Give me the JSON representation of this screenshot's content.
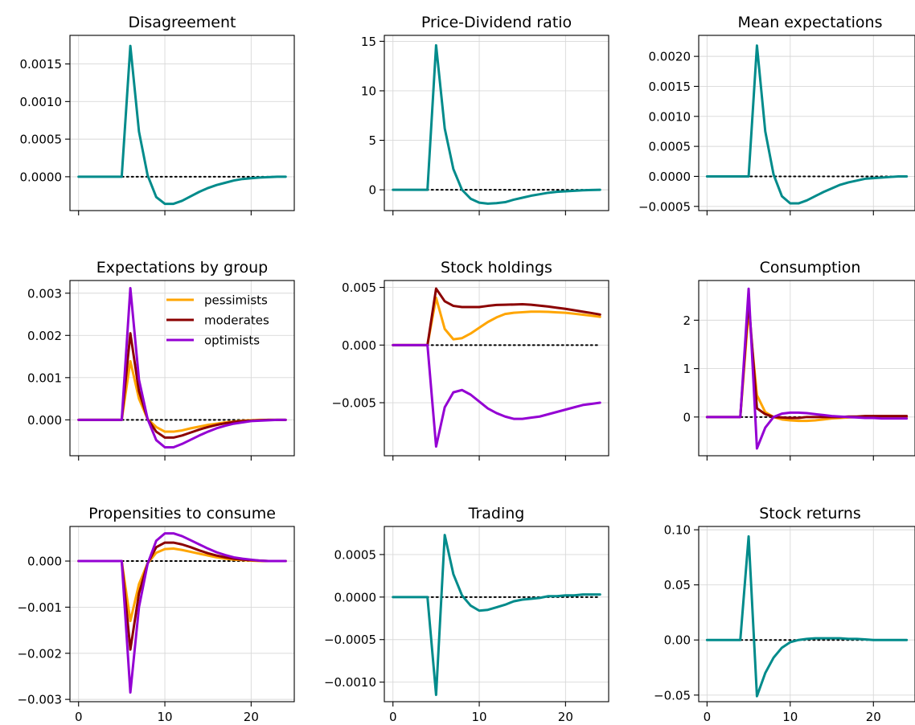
{
  "figure": {
    "line_color_default": "#008B8B",
    "group_colors": {
      "pessimists": "#FFA500",
      "moderates": "#8B0000",
      "optimists": "#9400D3"
    }
  },
  "chart_data": [
    {
      "type": "line",
      "title": "Disagreement",
      "x": [
        0,
        1,
        2,
        3,
        4,
        5,
        6,
        7,
        8,
        9,
        10,
        11,
        12,
        13,
        14,
        15,
        16,
        17,
        18,
        19,
        20,
        21,
        22,
        23,
        24
      ],
      "xlim": [
        -1,
        25
      ],
      "xticks": [
        0,
        10,
        20
      ],
      "show_xtick_labels": false,
      "ylim": [
        -0.00045,
        0.00188
      ],
      "yticks": [
        0.0,
        0.0005,
        0.001,
        0.0015
      ],
      "ytick_labels": [
        "0.0000",
        "0.0005",
        "0.0010",
        "0.0015"
      ],
      "grid": true,
      "zero_line": true,
      "series": [
        {
          "color": "#008B8B",
          "values": [
            0,
            0,
            0,
            0,
            0,
            0,
            0.00174,
            0.0006,
            2e-05,
            -0.00027,
            -0.00036,
            -0.00036,
            -0.00032,
            -0.00026,
            -0.0002,
            -0.00015,
            -0.00011,
            -8e-05,
            -5e-05,
            -3e-05,
            -2e-05,
            -1e-05,
            -5e-06,
            0,
            0
          ]
        }
      ]
    },
    {
      "type": "line",
      "title": "Price-Dividend ratio",
      "x": [
        0,
        1,
        2,
        3,
        4,
        5,
        6,
        7,
        8,
        9,
        10,
        11,
        12,
        13,
        14,
        15,
        16,
        17,
        18,
        19,
        20,
        21,
        22,
        23,
        24
      ],
      "xlim": [
        -1,
        25
      ],
      "xticks": [
        0,
        10,
        20
      ],
      "show_xtick_labels": false,
      "ylim": [
        -2.1,
        15.6
      ],
      "yticks": [
        0,
        5,
        10,
        15
      ],
      "ytick_labels": [
        "0",
        "5",
        "10",
        "15"
      ],
      "grid": true,
      "zero_line": true,
      "series": [
        {
          "color": "#008B8B",
          "values": [
            0,
            0,
            0,
            0,
            0,
            14.6,
            6.2,
            2.1,
            0,
            -0.9,
            -1.3,
            -1.4,
            -1.35,
            -1.25,
            -1.0,
            -0.8,
            -0.6,
            -0.45,
            -0.3,
            -0.2,
            -0.15,
            -0.1,
            -0.05,
            -0.02,
            0
          ]
        }
      ]
    },
    {
      "type": "line",
      "title": "Mean expectations",
      "x": [
        0,
        1,
        2,
        3,
        4,
        5,
        6,
        7,
        8,
        9,
        10,
        11,
        12,
        13,
        14,
        15,
        16,
        17,
        18,
        19,
        20,
        21,
        22,
        23,
        24
      ],
      "xlim": [
        -1,
        25
      ],
      "xticks": [
        0,
        10,
        20
      ],
      "show_xtick_labels": false,
      "ylim": [
        -0.00057,
        0.00235
      ],
      "yticks": [
        -0.0005,
        0.0,
        0.0005,
        0.001,
        0.0015,
        0.002
      ],
      "ytick_labels": [
        "−0.0005",
        "0.0000",
        "0.0005",
        "0.0010",
        "0.0015",
        "0.0020"
      ],
      "grid": true,
      "zero_line": true,
      "series": [
        {
          "color": "#008B8B",
          "values": [
            0,
            0,
            0,
            0,
            0,
            0,
            0.00218,
            0.00075,
            3e-05,
            -0.00033,
            -0.00045,
            -0.00045,
            -0.0004,
            -0.00033,
            -0.00026,
            -0.0002,
            -0.00014,
            -0.0001,
            -7e-05,
            -4e-05,
            -3e-05,
            -2e-05,
            -1e-05,
            0,
            0
          ]
        }
      ]
    },
    {
      "type": "line",
      "title": "Expectations by group",
      "x": [
        0,
        1,
        2,
        3,
        4,
        5,
        6,
        7,
        8,
        9,
        10,
        11,
        12,
        13,
        14,
        15,
        16,
        17,
        18,
        19,
        20,
        21,
        22,
        23,
        24
      ],
      "xlim": [
        -1,
        25
      ],
      "xticks": [
        0,
        10,
        20
      ],
      "show_xtick_labels": false,
      "ylim": [
        -0.00085,
        0.0033
      ],
      "yticks": [
        0.0,
        0.001,
        0.002,
        0.003
      ],
      "ytick_labels": [
        "0.000",
        "0.001",
        "0.002",
        "0.003"
      ],
      "grid": true,
      "zero_line": true,
      "legend": {
        "placement": "top-right",
        "entries": [
          "pessimists",
          "moderates",
          "optimists"
        ]
      },
      "series": [
        {
          "name": "pessimists",
          "color": "#FFA500",
          "values": [
            0,
            0,
            0,
            0,
            0,
            0,
            0.00139,
            0.0005,
            2e-05,
            -0.00017,
            -0.00028,
            -0.00028,
            -0.00025,
            -0.0002,
            -0.00016,
            -0.00012,
            -9e-05,
            -6e-05,
            -4e-05,
            -2e-05,
            -1e-05,
            0,
            0,
            0,
            0
          ]
        },
        {
          "name": "moderates",
          "color": "#8B0000",
          "values": [
            0,
            0,
            0,
            0,
            0,
            0,
            0.00205,
            0.00068,
            2e-05,
            -0.00028,
            -0.00042,
            -0.00042,
            -0.00037,
            -0.0003,
            -0.00023,
            -0.00017,
            -0.00012,
            -8e-05,
            -5e-05,
            -3e-05,
            -2e-05,
            -1e-05,
            0,
            0,
            0
          ]
        },
        {
          "name": "optimists",
          "color": "#9400D3",
          "values": [
            0,
            0,
            0,
            0,
            0,
            0,
            0.00312,
            0.00095,
            2e-05,
            -0.00048,
            -0.00065,
            -0.00065,
            -0.00057,
            -0.00047,
            -0.00037,
            -0.00028,
            -0.0002,
            -0.00014,
            -9e-05,
            -6e-05,
            -3e-05,
            -2e-05,
            -1e-05,
            0,
            0
          ]
        }
      ]
    },
    {
      "type": "line",
      "title": "Stock holdings",
      "x": [
        0,
        1,
        2,
        3,
        4,
        5,
        6,
        7,
        8,
        9,
        10,
        11,
        12,
        13,
        14,
        15,
        16,
        17,
        18,
        19,
        20,
        21,
        22,
        23,
        24
      ],
      "xlim": [
        -1,
        25
      ],
      "xticks": [
        0,
        10,
        20
      ],
      "show_xtick_labels": false,
      "ylim": [
        -0.0096,
        0.0056
      ],
      "yticks": [
        -0.005,
        0.0,
        0.005
      ],
      "ytick_labels": [
        "−0.005",
        "0.000",
        "0.005"
      ],
      "grid": true,
      "zero_line": true,
      "series": [
        {
          "name": "pessimists",
          "color": "#FFA500",
          "values": [
            0,
            0,
            0,
            0,
            0,
            0.0041,
            0.0014,
            0.0005,
            0.0006,
            0.001,
            0.0015,
            0.002,
            0.0024,
            0.0027,
            0.0028,
            0.00285,
            0.0029,
            0.0029,
            0.00288,
            0.00284,
            0.0028,
            0.00272,
            0.00264,
            0.00255,
            0.00245
          ]
        },
        {
          "name": "moderates",
          "color": "#8B0000",
          "values": [
            0,
            0,
            0,
            0,
            0,
            0.0049,
            0.0038,
            0.0034,
            0.0033,
            0.0033,
            0.0033,
            0.0034,
            0.00348,
            0.0035,
            0.00352,
            0.00354,
            0.0035,
            0.00342,
            0.00334,
            0.00324,
            0.00314,
            0.00302,
            0.0029,
            0.00278,
            0.00265
          ]
        },
        {
          "name": "optimists",
          "color": "#9400D3",
          "values": [
            0,
            0,
            0,
            0,
            0,
            -0.0088,
            -0.0054,
            -0.0041,
            -0.0039,
            -0.0043,
            -0.0049,
            -0.0055,
            -0.0059,
            -0.0062,
            -0.0064,
            -0.0064,
            -0.0063,
            -0.0062,
            -0.006,
            -0.0058,
            -0.0056,
            -0.0054,
            -0.0052,
            -0.0051,
            -0.005
          ]
        }
      ]
    },
    {
      "type": "line",
      "title": "Consumption",
      "x": [
        0,
        1,
        2,
        3,
        4,
        5,
        6,
        7,
        8,
        9,
        10,
        11,
        12,
        13,
        14,
        15,
        16,
        17,
        18,
        19,
        20,
        21,
        22,
        23,
        24
      ],
      "xlim": [
        -1,
        25
      ],
      "xticks": [
        0,
        10,
        20
      ],
      "show_xtick_labels": false,
      "ylim": [
        -0.8,
        2.82
      ],
      "yticks": [
        0,
        1,
        2
      ],
      "ytick_labels": [
        "0",
        "1",
        "2"
      ],
      "grid": true,
      "zero_line": true,
      "series": [
        {
          "name": "pessimists",
          "color": "#FFA500",
          "values": [
            0,
            0,
            0,
            0,
            0,
            2.2,
            0.45,
            0.1,
            0,
            -0.05,
            -0.07,
            -0.08,
            -0.08,
            -0.07,
            -0.05,
            -0.03,
            -0.02,
            -0.01,
            0,
            0,
            0,
            0,
            0,
            0,
            0
          ]
        },
        {
          "name": "moderates",
          "color": "#8B0000",
          "values": [
            0,
            0,
            0,
            0,
            0,
            2.4,
            0.18,
            0.06,
            0,
            -0.01,
            -0.02,
            -0.02,
            0,
            0,
            0,
            0,
            0,
            0.01,
            0.01,
            0.02,
            0.02,
            0.02,
            0.02,
            0.02,
            0.02
          ]
        },
        {
          "name": "optimists",
          "color": "#9400D3",
          "values": [
            0,
            0,
            0,
            0,
            0,
            2.65,
            -0.65,
            -0.22,
            0,
            0.07,
            0.09,
            0.09,
            0.08,
            0.06,
            0.04,
            0.02,
            0.01,
            0,
            -0.01,
            -0.02,
            -0.02,
            -0.03,
            -0.03,
            -0.03,
            -0.03
          ]
        }
      ]
    },
    {
      "type": "line",
      "title": "Propensities to consume",
      "x": [
        0,
        1,
        2,
        3,
        4,
        5,
        6,
        7,
        8,
        9,
        10,
        11,
        12,
        13,
        14,
        15,
        16,
        17,
        18,
        19,
        20,
        21,
        22,
        23,
        24
      ],
      "xlim": [
        -1,
        25
      ],
      "xticks": [
        0,
        10,
        20
      ],
      "show_xtick_labels": true,
      "ylim": [
        -0.00305,
        0.00075
      ],
      "yticks": [
        -0.003,
        -0.002,
        -0.001,
        0.0
      ],
      "ytick_labels": [
        "−0.003",
        "−0.002",
        "−0.001",
        "0.000"
      ],
      "grid": true,
      "zero_line": true,
      "series": [
        {
          "name": "pessimists",
          "color": "#FFA500",
          "values": [
            0,
            0,
            0,
            0,
            0,
            0,
            -0.0013,
            -0.0005,
            -5e-05,
            0.00018,
            0.00026,
            0.00027,
            0.00024,
            0.0002,
            0.00016,
            0.00012,
            8e-05,
            5e-05,
            3e-05,
            2e-05,
            1e-05,
            0,
            0,
            0,
            0
          ]
        },
        {
          "name": "moderates",
          "color": "#8B0000",
          "values": [
            0,
            0,
            0,
            0,
            0,
            0,
            -0.00192,
            -0.0007,
            -5e-05,
            0.0003,
            0.0004,
            0.0004,
            0.00036,
            0.0003,
            0.00023,
            0.00017,
            0.00012,
            8e-05,
            5e-05,
            3e-05,
            2e-05,
            1e-05,
            0,
            0,
            0
          ]
        },
        {
          "name": "optimists",
          "color": "#9400D3",
          "values": [
            0,
            0,
            0,
            0,
            0,
            0,
            -0.00285,
            -0.001,
            -6e-05,
            0.00044,
            0.0006,
            0.0006,
            0.00054,
            0.00045,
            0.00036,
            0.00027,
            0.00019,
            0.00013,
            8e-05,
            5e-05,
            3e-05,
            1e-05,
            0,
            0,
            0
          ]
        }
      ]
    },
    {
      "type": "line",
      "title": "Trading",
      "x": [
        0,
        1,
        2,
        3,
        4,
        5,
        6,
        7,
        8,
        9,
        10,
        11,
        12,
        13,
        14,
        15,
        16,
        17,
        18,
        19,
        20,
        21,
        22,
        23,
        24
      ],
      "xlim": [
        -1,
        25
      ],
      "xticks": [
        0,
        10,
        20
      ],
      "show_xtick_labels": true,
      "ylim": [
        -0.00123,
        0.00083
      ],
      "yticks": [
        -0.001,
        -0.0005,
        0.0,
        0.0005
      ],
      "ytick_labels": [
        "−0.0010",
        "−0.0005",
        "0.0000",
        "0.0005"
      ],
      "grid": true,
      "zero_line": true,
      "series": [
        {
          "color": "#008B8B",
          "values": [
            0,
            0,
            0,
            0,
            0,
            -0.00115,
            0.00073,
            0.00027,
            2e-05,
            -0.0001,
            -0.00016,
            -0.00015,
            -0.00012,
            -9e-05,
            -5e-05,
            -3e-05,
            -2e-05,
            -1e-05,
            1e-05,
            1e-05,
            2e-05,
            2e-05,
            3e-05,
            3e-05,
            3e-05
          ]
        }
      ]
    },
    {
      "type": "line",
      "title": "Stock returns",
      "x": [
        0,
        1,
        2,
        3,
        4,
        5,
        6,
        7,
        8,
        9,
        10,
        11,
        12,
        13,
        14,
        15,
        16,
        17,
        18,
        19,
        20,
        21,
        22,
        23,
        24
      ],
      "xlim": [
        -1,
        25
      ],
      "xticks": [
        0,
        10,
        20
      ],
      "show_xtick_labels": true,
      "ylim": [
        -0.056,
        0.103
      ],
      "yticks": [
        -0.05,
        0.0,
        0.05,
        0.1
      ],
      "ytick_labels": [
        "−0.05",
        "0.00",
        "0.05",
        "0.10"
      ],
      "grid": true,
      "zero_line": true,
      "series": [
        {
          "color": "#008B8B",
          "values": [
            0,
            0,
            0,
            0,
            0,
            0.094,
            -0.051,
            -0.03,
            -0.016,
            -0.007,
            -0.002,
            0,
            0.001,
            0.0015,
            0.0015,
            0.0015,
            0.0015,
            0.001,
            0.001,
            0.0005,
            0,
            0,
            0,
            0,
            0
          ]
        }
      ]
    }
  ]
}
